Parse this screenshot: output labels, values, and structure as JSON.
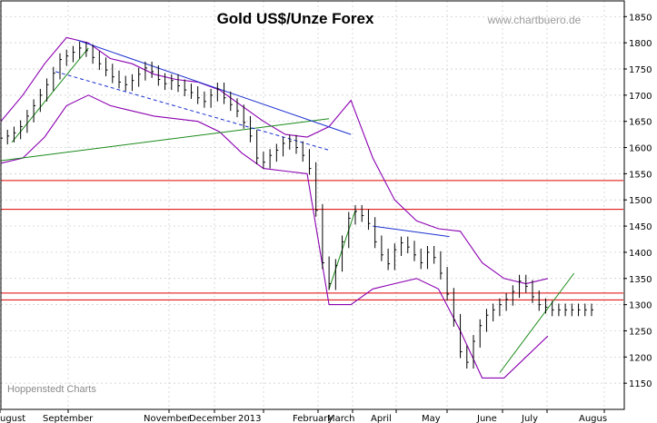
{
  "chart_data": {
    "type": "ohlc",
    "title": "Gold US$/Unze Forex",
    "watermark": "www.chartbuero.de",
    "credit": "Hoppenstedt Charts",
    "y_axis": {
      "side": "right",
      "ylim": [
        1100,
        1880
      ],
      "ticks": [
        1150,
        1200,
        1250,
        1300,
        1350,
        1400,
        1450,
        1500,
        1550,
        1600,
        1650,
        1700,
        1750,
        1800,
        1850
      ]
    },
    "x_axis": {
      "labels": [
        "ugust",
        "September",
        "November",
        "December",
        "2013",
        "February",
        "March",
        "April",
        "May",
        "June",
        "July",
        "Augus"
      ]
    },
    "grid": true,
    "colors": {
      "bars": "#000000",
      "bands": "#8b00b0",
      "channel_blue": "#1a2fd0",
      "trend_green": "#1a8a1a",
      "support_red": "#e00000"
    },
    "support_lines": [
      1537,
      1482,
      1322,
      1309
    ],
    "series": [
      {
        "name": "Gold",
        "role": "ohlc_close",
        "x": [
          0,
          3,
          6,
          9,
          12,
          15,
          18,
          21,
          24,
          27,
          30,
          33,
          36,
          39,
          42,
          45,
          48,
          51,
          54,
          57,
          60,
          63,
          66,
          69,
          72,
          75,
          78,
          81,
          84,
          87,
          90,
          93,
          96,
          99,
          102,
          105,
          108,
          111,
          114,
          117,
          120,
          123,
          126,
          129,
          132,
          135,
          138,
          141,
          144,
          147,
          150,
          153,
          156,
          159,
          162,
          165,
          168,
          171,
          174,
          177,
          180,
          183,
          186,
          189,
          192,
          195,
          198,
          201,
          204,
          207,
          210,
          213,
          216,
          219,
          222,
          225,
          228,
          231,
          234,
          237,
          240,
          243,
          246,
          249,
          252,
          255,
          258,
          261,
          264,
          267,
          270
        ],
        "y": [
          1618,
          1622,
          1628,
          1640,
          1660,
          1680,
          1700,
          1720,
          1742,
          1768,
          1775,
          1782,
          1790,
          1785,
          1772,
          1760,
          1748,
          1735,
          1725,
          1720,
          1728,
          1740,
          1752,
          1745,
          1730,
          1722,
          1728,
          1718,
          1710,
          1705,
          1695,
          1688,
          1700,
          1712,
          1695,
          1682,
          1670,
          1648,
          1622,
          1580,
          1572,
          1585,
          1595,
          1608,
          1612,
          1600,
          1585,
          1560,
          1480,
          1380,
          1340,
          1375,
          1420,
          1465,
          1478,
          1470,
          1455,
          1420,
          1395,
          1378,
          1405,
          1418,
          1410,
          1395,
          1380,
          1400,
          1390,
          1360,
          1320,
          1270,
          1210,
          1190,
          1230,
          1260,
          1280,
          1290,
          1300,
          1310,
          1325,
          1345,
          1335,
          1315,
          1300,
          1295,
          1290,
          1290,
          1290,
          1290,
          1290,
          1290,
          1290
        ]
      },
      {
        "name": "Upper band",
        "role": "bollinger_upper",
        "x": [
          0,
          10,
          20,
          30,
          40,
          50,
          60,
          70,
          80,
          90,
          100,
          110,
          120,
          130,
          140,
          150,
          160,
          170,
          180,
          190,
          200,
          210,
          220,
          230,
          240,
          250
        ],
        "y": [
          1650,
          1700,
          1760,
          1810,
          1800,
          1770,
          1760,
          1740,
          1730,
          1725,
          1710,
          1680,
          1650,
          1625,
          1620,
          1640,
          1690,
          1580,
          1500,
          1460,
          1445,
          1440,
          1380,
          1350,
          1340,
          1350
        ]
      },
      {
        "name": "Lower band",
        "role": "bollinger_lower",
        "x": [
          0,
          10,
          20,
          30,
          40,
          50,
          60,
          70,
          80,
          90,
          100,
          110,
          120,
          130,
          140,
          150,
          160,
          170,
          180,
          190,
          200,
          210,
          220,
          230,
          240,
          250
        ],
        "y": [
          1570,
          1580,
          1620,
          1680,
          1700,
          1680,
          1670,
          1660,
          1655,
          1650,
          1630,
          1590,
          1560,
          1555,
          1550,
          1300,
          1300,
          1330,
          1340,
          1350,
          1330,
          1250,
          1160,
          1160,
          1200,
          1240
        ]
      }
    ]
  }
}
